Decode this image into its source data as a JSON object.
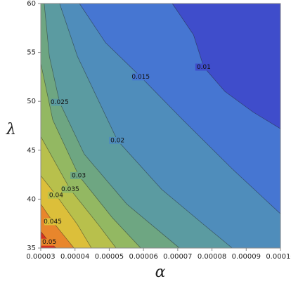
{
  "chart_data": {
    "type": "contour",
    "xlabel": "α",
    "ylabel": "λ",
    "xlim": [
      3e-05,
      0.0001
    ],
    "ylim": [
      35,
      60
    ],
    "xticks": [
      3e-05,
      4e-05,
      5e-05,
      6e-05,
      7e-05,
      8e-05,
      9e-05,
      {
        "value": 0.0001,
        "label": "0.00010"
      }
    ],
    "yticks": [
      35,
      40,
      45,
      50,
      55,
      60
    ],
    "color": "#d6311f",
    "contours": [
      {
        "level": 0.05,
        "fill": "#e8862c",
        "x": [
          3e-05,
          3.25e-05,
          3.45e-05
        ],
        "y": [
          36.7,
          35.6,
          35
        ]
      },
      {
        "level": 0.045,
        "fill": "#dcbf3a",
        "x": [
          3e-05,
          3.35e-05,
          3.97e-05
        ],
        "y": [
          39.5,
          37.7,
          35
        ]
      },
      {
        "level": 0.04,
        "fill": "#b8c04c",
        "x": [
          3e-05,
          3.45e-05,
          4.07e-05,
          4.48e-05
        ],
        "y": [
          42.4,
          40.4,
          37.4,
          35
        ]
      },
      {
        "level": 0.035,
        "fill": "#93b862",
        "x": [
          3e-05,
          3.86e-05,
          4.68e-05,
          5.2e-05
        ],
        "y": [
          46.4,
          41,
          37.4,
          35
        ]
      },
      {
        "level": 0.03,
        "fill": "#6ea682",
        "x": [
          3e-05,
          3.35e-05,
          4.11e-05,
          5.09e-05,
          5.92e-05
        ],
        "y": [
          53.9,
          48.1,
          42.4,
          38.1,
          35
        ]
      },
      {
        "level": 0.025,
        "fill": "#5b9ba1",
        "x": [
          3.1e-05,
          3.25e-05,
          3.55e-05,
          4.27e-05,
          5.51e-05,
          7.05e-05
        ],
        "y": [
          60,
          54.6,
          49.9,
          44.6,
          39.5,
          35
        ]
      },
      {
        "level": 0.02,
        "fill": "#4f8dbb",
        "x": [
          3.55e-05,
          4.07e-05,
          5.24e-05,
          6.53e-05,
          7.76e-05,
          8.59e-05
        ],
        "y": [
          60,
          54.6,
          46,
          41,
          37.4,
          35
        ]
      },
      {
        "level": 0.015,
        "fill": "#4676d2",
        "x": [
          4.13e-05,
          4.89e-05,
          5.92e-05,
          7.15e-05,
          8.59e-05,
          0.0001
        ],
        "y": [
          60,
          56,
          52.5,
          48.1,
          43.1,
          38.5
        ]
      },
      {
        "level": 0.01,
        "fill": "#3f4dcb",
        "x": [
          6.84e-05,
          7.46e-05,
          7.76e-05,
          8.38e-05,
          9.2e-05,
          0.0001
        ],
        "y": [
          60,
          56.8,
          53.5,
          51,
          48.9,
          47.2
        ]
      }
    ]
  }
}
